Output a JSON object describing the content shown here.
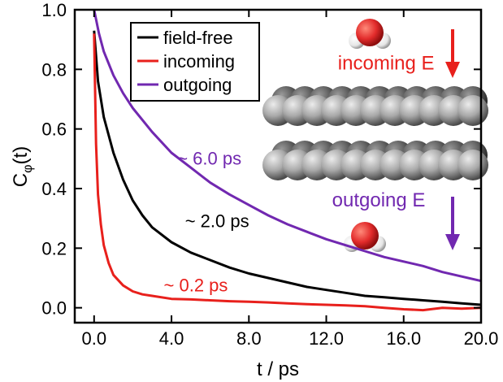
{
  "chart_data": {
    "type": "line",
    "xlabel": "t / ps",
    "ylabel": "C",
    "ylabel_sub": "φ",
    "ylabel_suffix": "(t)",
    "xlim": [
      -1.0,
      20.0
    ],
    "ylim": [
      -0.05,
      1.0
    ],
    "x_ticks": [
      0.0,
      4.0,
      8.0,
      12.0,
      16.0,
      20.0
    ],
    "x_tick_labels": [
      "0.0",
      "4.0",
      "8.0",
      "12.0",
      "16.0",
      "20.0"
    ],
    "y_ticks": [
      0.0,
      0.2,
      0.4,
      0.6,
      0.8,
      1.0
    ],
    "y_tick_labels": [
      "0.0",
      "0.2",
      "0.4",
      "0.6",
      "0.8",
      "1.0"
    ],
    "grid": false,
    "legend_position": "top-left",
    "series": [
      {
        "name": "field-free",
        "color": "#000000",
        "x": [
          0.0,
          0.2,
          0.5,
          1.0,
          1.5,
          2.0,
          2.5,
          3.0,
          4.0,
          5.0,
          6.0,
          7.0,
          8.0,
          9.0,
          10.0,
          11.0,
          12.0,
          13.0,
          14.0,
          15.0,
          16.0,
          17.0,
          18.0,
          19.0,
          20.0
        ],
        "y": [
          0.93,
          0.76,
          0.64,
          0.52,
          0.43,
          0.36,
          0.31,
          0.27,
          0.22,
          0.185,
          0.16,
          0.135,
          0.115,
          0.1,
          0.085,
          0.07,
          0.06,
          0.05,
          0.04,
          0.035,
          0.03,
          0.025,
          0.02,
          0.015,
          0.01
        ]
      },
      {
        "name": "incoming",
        "color": "#e8201c",
        "x": [
          0.0,
          0.1,
          0.2,
          0.35,
          0.5,
          0.75,
          1.0,
          1.5,
          2.0,
          2.5,
          3.0,
          4.0,
          5.0,
          6.0,
          7.0,
          8.0,
          9.0,
          10.0,
          11.0,
          12.0,
          13.0,
          14.0,
          15.0,
          16.0,
          17.0,
          18.0,
          19.0,
          20.0
        ],
        "y": [
          0.92,
          0.55,
          0.38,
          0.28,
          0.21,
          0.15,
          0.11,
          0.075,
          0.055,
          0.045,
          0.04,
          0.03,
          0.028,
          0.025,
          0.022,
          0.02,
          0.018,
          0.015,
          0.012,
          0.01,
          0.008,
          0.005,
          0.0,
          -0.005,
          -0.008,
          0.0,
          -0.003,
          0.0
        ]
      },
      {
        "name": "outgoing",
        "color": "#7128b0",
        "x": [
          0.0,
          0.25,
          0.5,
          1.0,
          1.5,
          2.0,
          3.0,
          4.0,
          5.0,
          6.0,
          7.0,
          8.0,
          9.0,
          10.0,
          11.0,
          12.0,
          13.0,
          14.0,
          15.0,
          16.0,
          17.0,
          18.0,
          19.0,
          20.0
        ],
        "y": [
          1.0,
          0.92,
          0.86,
          0.78,
          0.72,
          0.67,
          0.59,
          0.52,
          0.47,
          0.42,
          0.38,
          0.345,
          0.31,
          0.28,
          0.255,
          0.23,
          0.21,
          0.19,
          0.17,
          0.155,
          0.14,
          0.12,
          0.105,
          0.09
        ]
      }
    ],
    "annotations": [
      {
        "text": "~ 6.0 ps",
        "color": "#7128b0",
        "x": 4.3,
        "y": 0.48
      },
      {
        "text": "~ 2.0 ps",
        "color": "#000000",
        "x": 4.7,
        "y": 0.27
      },
      {
        "text": "~ 0.2 ps",
        "color": "#e8201c",
        "x": 3.6,
        "y": 0.055
      },
      {
        "text": "incoming E",
        "color": "#e8201c",
        "x": 12.6,
        "y": 0.8
      },
      {
        "text": "outgoing E",
        "color": "#7128b0",
        "x": 12.3,
        "y": 0.34
      }
    ]
  },
  "colors": {
    "field_free": "#000000",
    "incoming": "#e8201c",
    "outgoing": "#7128b0",
    "oxygen": "#e22b2b",
    "hydrogen": "#f4f4f4",
    "graphene_dark": "#3c3c3c",
    "graphene_light": "#c8c8c8"
  },
  "inset_icons": [
    "water-molecule-icon",
    "graphene-layer-icon",
    "down-arrow-icon"
  ]
}
